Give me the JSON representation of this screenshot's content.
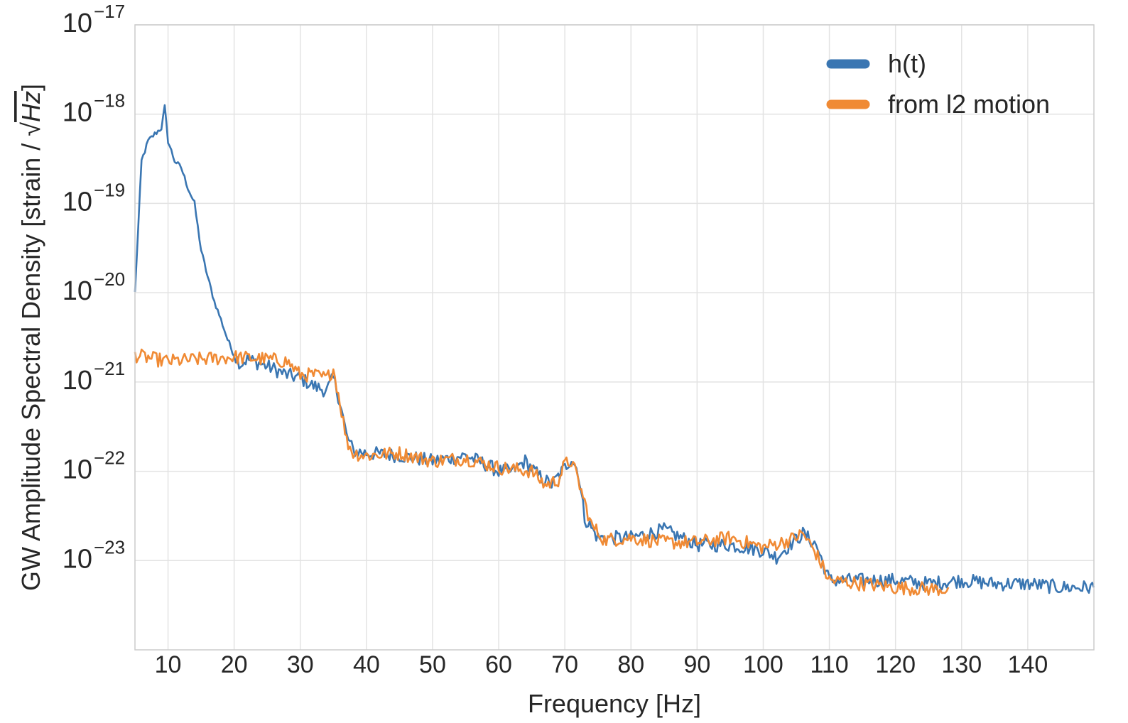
{
  "chart_data": {
    "type": "line",
    "xlabel": "Frequency [Hz]",
    "ylabel_prefix": "GW Amplitude Spectral Density [strain / ",
    "ylabel_radical": "Hz",
    "ylabel_suffix": "]",
    "xlim": [
      5,
      150
    ],
    "ylim": [
      1e-24,
      1e-17
    ],
    "yscale": "log",
    "grid": true,
    "legend_position": "top-right",
    "x_ticks": [
      10,
      20,
      30,
      40,
      50,
      60,
      70,
      80,
      90,
      100,
      110,
      120,
      130,
      140
    ],
    "x_tick_labels": [
      "10",
      "20",
      "30",
      "40",
      "50",
      "60",
      "70",
      "80",
      "90",
      "100",
      "110",
      "120",
      "130",
      "140"
    ],
    "y_ticks": [
      {
        "base": "10",
        "exp": "−17",
        "value": 1e-17
      },
      {
        "base": "10",
        "exp": "−18",
        "value": 1e-18
      },
      {
        "base": "10",
        "exp": "−19",
        "value": 1e-19
      },
      {
        "base": "10",
        "exp": "−20",
        "value": 1e-20
      },
      {
        "base": "10",
        "exp": "−21",
        "value": 1e-21
      },
      {
        "base": "10",
        "exp": "−22",
        "value": 1e-22
      },
      {
        "base": "10",
        "exp": "−23",
        "value": 1e-23
      }
    ],
    "series": [
      {
        "name": "h(t)",
        "color": "#3a76b2",
        "points": [
          [
            5,
            1e-20
          ],
          [
            6,
            3e-19
          ],
          [
            7,
            5e-19
          ],
          [
            8,
            6e-19
          ],
          [
            9,
            7e-19
          ],
          [
            9.5,
            1.2e-18
          ],
          [
            10,
            5e-19
          ],
          [
            11,
            3e-19
          ],
          [
            12,
            2.5e-19
          ],
          [
            13,
            1.5e-19
          ],
          [
            14,
            1e-19
          ],
          [
            15,
            3e-20
          ],
          [
            16,
            1.5e-20
          ],
          [
            17,
            8e-21
          ],
          [
            18,
            5e-21
          ],
          [
            19,
            3e-21
          ],
          [
            20,
            2e-21
          ],
          [
            21,
            1.6e-21
          ],
          [
            22,
            1.8e-21
          ],
          [
            24,
            1.6e-21
          ],
          [
            26,
            1.4e-21
          ],
          [
            28,
            1.2e-21
          ],
          [
            30,
            1.1e-21
          ],
          [
            32,
            9e-22
          ],
          [
            34,
            8e-22
          ],
          [
            35,
            1.1e-21
          ],
          [
            36,
            6e-22
          ],
          [
            37,
            2.5e-22
          ],
          [
            38,
            1.7e-22
          ],
          [
            40,
            1.6e-22
          ],
          [
            45,
            1.5e-22
          ],
          [
            50,
            1.3e-22
          ],
          [
            55,
            1.5e-22
          ],
          [
            58,
            1.2e-22
          ],
          [
            60,
            1e-22
          ],
          [
            62,
            1e-22
          ],
          [
            64,
            1.3e-22
          ],
          [
            66,
            9e-23
          ],
          [
            68,
            7e-23
          ],
          [
            70,
            1.1e-22
          ],
          [
            71,
            1.4e-22
          ],
          [
            72,
            1e-22
          ],
          [
            73,
            3e-23
          ],
          [
            75,
            1.8e-23
          ],
          [
            80,
            1.8e-23
          ],
          [
            85,
            2.2e-23
          ],
          [
            90,
            1.5e-23
          ],
          [
            95,
            1.5e-23
          ],
          [
            100,
            1.3e-23
          ],
          [
            102,
            1.1e-23
          ],
          [
            104,
            1.5e-23
          ],
          [
            106,
            2e-23
          ],
          [
            108,
            1.5e-23
          ],
          [
            110,
            6e-24
          ],
          [
            115,
            6e-24
          ],
          [
            120,
            6e-24
          ],
          [
            125,
            5.5e-24
          ],
          [
            130,
            6e-24
          ],
          [
            135,
            5.5e-24
          ],
          [
            140,
            5.5e-24
          ],
          [
            145,
            5e-24
          ],
          [
            150,
            5e-24
          ]
        ]
      },
      {
        "name": "from l2 motion",
        "color": "#f08a34",
        "points": [
          [
            5,
            2e-21
          ],
          [
            8,
            1.8e-21
          ],
          [
            10,
            1.7e-21
          ],
          [
            15,
            1.8e-21
          ],
          [
            20,
            1.9e-21
          ],
          [
            25,
            1.8e-21
          ],
          [
            28,
            1.7e-21
          ],
          [
            30,
            1.2e-21
          ],
          [
            32,
            1.2e-21
          ],
          [
            34,
            1.1e-21
          ],
          [
            35,
            1.4e-21
          ],
          [
            36,
            6e-22
          ],
          [
            37,
            2.2e-22
          ],
          [
            38,
            1.6e-22
          ],
          [
            40,
            1.5e-22
          ],
          [
            45,
            1.6e-22
          ],
          [
            50,
            1.3e-22
          ],
          [
            55,
            1.4e-22
          ],
          [
            60,
            1.1e-22
          ],
          [
            65,
            1e-22
          ],
          [
            67,
            7e-23
          ],
          [
            69,
            8e-23
          ],
          [
            70,
            1.2e-22
          ],
          [
            71,
            1.3e-22
          ],
          [
            72,
            8e-23
          ],
          [
            74,
            2.5e-23
          ],
          [
            76,
            1.7e-23
          ],
          [
            80,
            1.8e-23
          ],
          [
            85,
            1.6e-23
          ],
          [
            90,
            1.6e-23
          ],
          [
            95,
            1.8e-23
          ],
          [
            100,
            1.4e-23
          ],
          [
            104,
            1.7e-23
          ],
          [
            106,
            2e-23
          ],
          [
            108,
            1.2e-23
          ],
          [
            110,
            6e-24
          ],
          [
            115,
            5.5e-24
          ],
          [
            120,
            5e-24
          ],
          [
            125,
            4.8e-24
          ],
          [
            128,
            4.8e-24
          ]
        ]
      }
    ]
  }
}
